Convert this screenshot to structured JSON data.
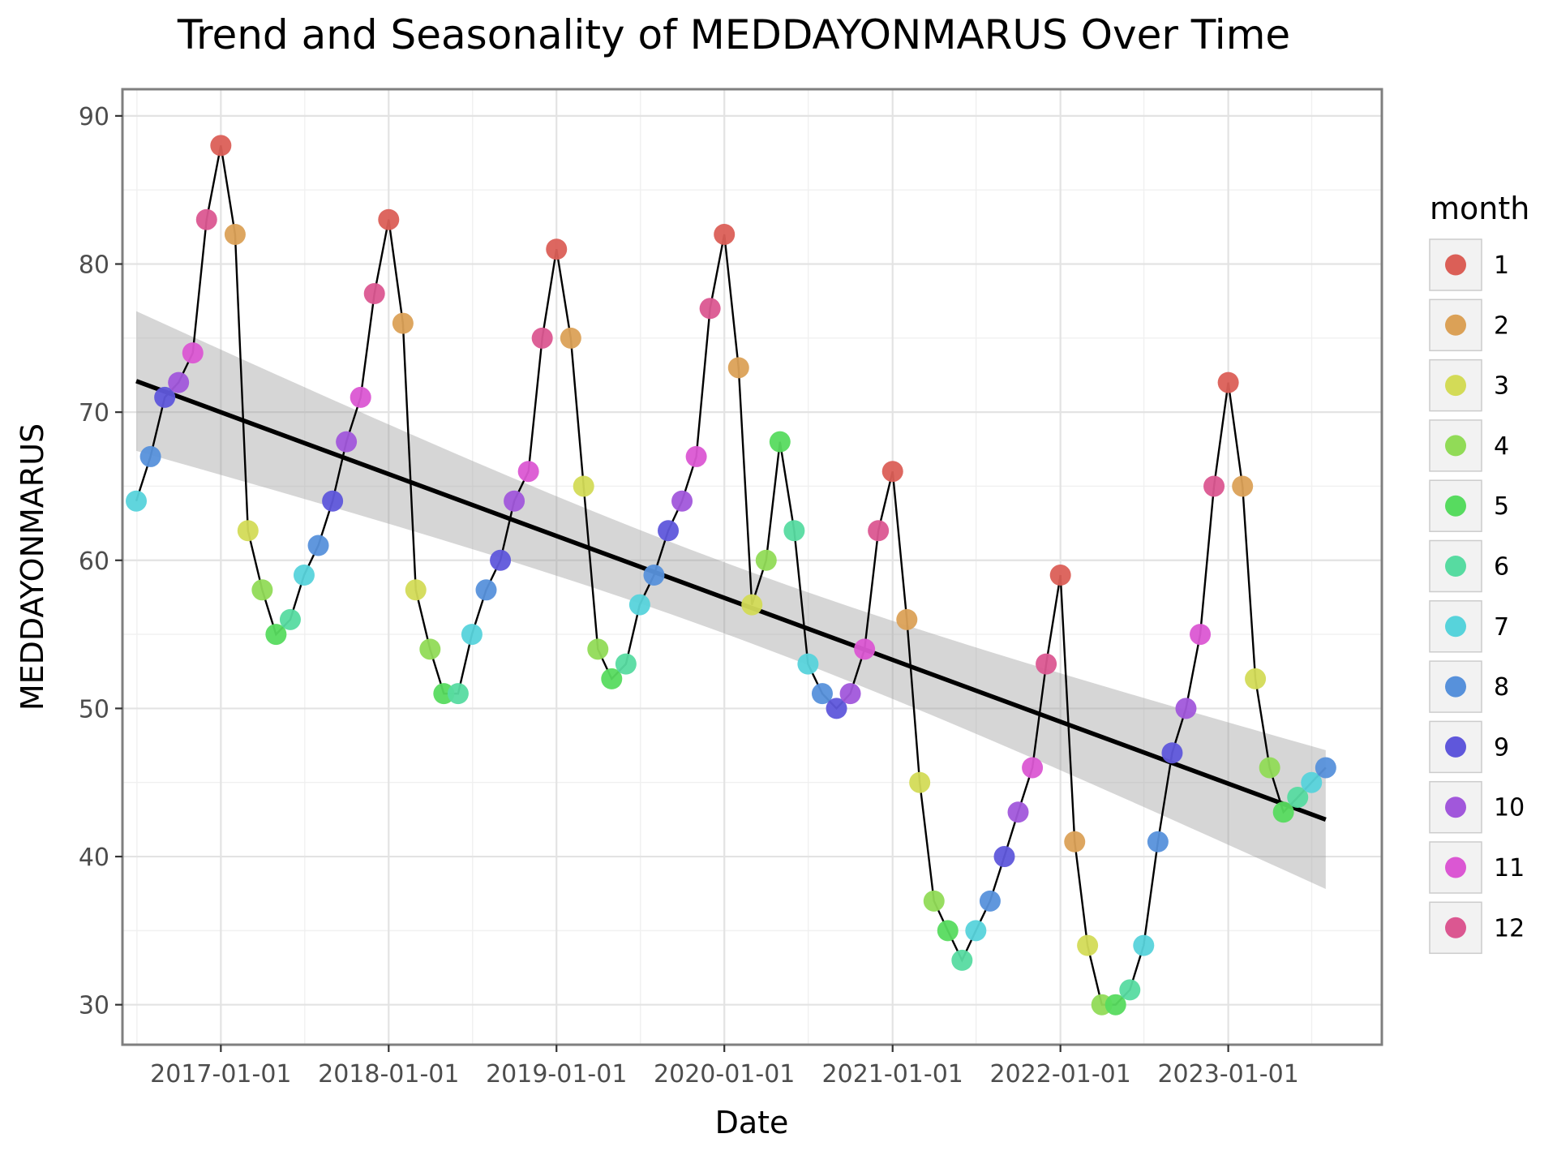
{
  "chart_data": {
    "type": "line",
    "title": "Trend and Seasonality of MEDDAYONMARUS Over Time",
    "xlabel": "Date",
    "ylabel": "MEDDAYONMARUS",
    "xlim": [
      "2016-06-01",
      "2023-12-01"
    ],
    "ylim": [
      27.3,
      91.8
    ],
    "x_ticks": [
      "2017-01-01",
      "2018-01-01",
      "2019-01-01",
      "2020-01-01",
      "2021-01-01",
      "2022-01-01",
      "2023-01-01"
    ],
    "y_ticks": [
      30,
      40,
      50,
      60,
      70,
      80,
      90
    ],
    "grid": true,
    "legend": {
      "title": "month",
      "position": "right",
      "entries": [
        {
          "label": "1",
          "color": "#db5f57"
        },
        {
          "label": "2",
          "color": "#dba157"
        },
        {
          "label": "3",
          "color": "#d3db57"
        },
        {
          "label": "4",
          "color": "#91db57"
        },
        {
          "label": "5",
          "color": "#57db5f"
        },
        {
          "label": "6",
          "color": "#57dba1"
        },
        {
          "label": "7",
          "color": "#57d3db"
        },
        {
          "label": "8",
          "color": "#5791db"
        },
        {
          "label": "9",
          "color": "#5f57db"
        },
        {
          "label": "10",
          "color": "#a157db"
        },
        {
          "label": "11",
          "color": "#db57d3"
        },
        {
          "label": "12",
          "color": "#db5791"
        }
      ]
    },
    "series": [
      {
        "type": "line+points",
        "color_by": "month",
        "points": [
          {
            "x": "2016-07-01",
            "y": 64
          },
          {
            "x": "2016-08-01",
            "y": 67
          },
          {
            "x": "2016-09-01",
            "y": 71
          },
          {
            "x": "2016-10-01",
            "y": 72
          },
          {
            "x": "2016-11-01",
            "y": 74
          },
          {
            "x": "2016-12-01",
            "y": 83
          },
          {
            "x": "2017-01-01",
            "y": 88
          },
          {
            "x": "2017-02-01",
            "y": 82
          },
          {
            "x": "2017-03-01",
            "y": 62
          },
          {
            "x": "2017-04-01",
            "y": 58
          },
          {
            "x": "2017-05-01",
            "y": 55
          },
          {
            "x": "2017-06-01",
            "y": 56
          },
          {
            "x": "2017-07-01",
            "y": 59
          },
          {
            "x": "2017-08-01",
            "y": 61
          },
          {
            "x": "2017-09-01",
            "y": 64
          },
          {
            "x": "2017-10-01",
            "y": 68
          },
          {
            "x": "2017-11-01",
            "y": 71
          },
          {
            "x": "2017-12-01",
            "y": 78
          },
          {
            "x": "2018-01-01",
            "y": 83
          },
          {
            "x": "2018-02-01",
            "y": 76
          },
          {
            "x": "2018-03-01",
            "y": 58
          },
          {
            "x": "2018-04-01",
            "y": 54
          },
          {
            "x": "2018-05-01",
            "y": 51
          },
          {
            "x": "2018-06-01",
            "y": 51
          },
          {
            "x": "2018-07-01",
            "y": 55
          },
          {
            "x": "2018-08-01",
            "y": 58
          },
          {
            "x": "2018-09-01",
            "y": 60
          },
          {
            "x": "2018-10-01",
            "y": 64
          },
          {
            "x": "2018-11-01",
            "y": 66
          },
          {
            "x": "2018-12-01",
            "y": 75
          },
          {
            "x": "2019-01-01",
            "y": 81
          },
          {
            "x": "2019-02-01",
            "y": 75
          },
          {
            "x": "2019-03-01",
            "y": 65
          },
          {
            "x": "2019-04-01",
            "y": 54
          },
          {
            "x": "2019-05-01",
            "y": 52
          },
          {
            "x": "2019-06-01",
            "y": 53
          },
          {
            "x": "2019-07-01",
            "y": 57
          },
          {
            "x": "2019-08-01",
            "y": 59
          },
          {
            "x": "2019-09-01",
            "y": 62
          },
          {
            "x": "2019-10-01",
            "y": 64
          },
          {
            "x": "2019-11-01",
            "y": 67
          },
          {
            "x": "2019-12-01",
            "y": 77
          },
          {
            "x": "2020-01-01",
            "y": 82
          },
          {
            "x": "2020-02-01",
            "y": 73
          },
          {
            "x": "2020-03-01",
            "y": 57
          },
          {
            "x": "2020-04-01",
            "y": 60
          },
          {
            "x": "2020-05-01",
            "y": 68
          },
          {
            "x": "2020-06-01",
            "y": 62
          },
          {
            "x": "2020-07-01",
            "y": 53
          },
          {
            "x": "2020-08-01",
            "y": 51
          },
          {
            "x": "2020-09-01",
            "y": 50
          },
          {
            "x": "2020-10-01",
            "y": 51
          },
          {
            "x": "2020-11-01",
            "y": 54
          },
          {
            "x": "2020-12-01",
            "y": 62
          },
          {
            "x": "2021-01-01",
            "y": 66
          },
          {
            "x": "2021-02-01",
            "y": 56
          },
          {
            "x": "2021-03-01",
            "y": 45
          },
          {
            "x": "2021-04-01",
            "y": 37
          },
          {
            "x": "2021-05-01",
            "y": 35
          },
          {
            "x": "2021-06-01",
            "y": 33
          },
          {
            "x": "2021-07-01",
            "y": 35
          },
          {
            "x": "2021-08-01",
            "y": 37
          },
          {
            "x": "2021-09-01",
            "y": 40
          },
          {
            "x": "2021-10-01",
            "y": 43
          },
          {
            "x": "2021-11-01",
            "y": 46
          },
          {
            "x": "2021-12-01",
            "y": 53
          },
          {
            "x": "2022-01-01",
            "y": 59
          },
          {
            "x": "2022-02-01",
            "y": 41
          },
          {
            "x": "2022-03-01",
            "y": 34
          },
          {
            "x": "2022-04-01",
            "y": 30
          },
          {
            "x": "2022-05-01",
            "y": 30
          },
          {
            "x": "2022-06-01",
            "y": 31
          },
          {
            "x": "2022-07-01",
            "y": 34
          },
          {
            "x": "2022-08-01",
            "y": 41
          },
          {
            "x": "2022-09-01",
            "y": 47
          },
          {
            "x": "2022-10-01",
            "y": 50
          },
          {
            "x": "2022-11-01",
            "y": 55
          },
          {
            "x": "2022-12-01",
            "y": 65
          },
          {
            "x": "2023-01-01",
            "y": 72
          },
          {
            "x": "2023-02-01",
            "y": 65
          },
          {
            "x": "2023-03-01",
            "y": 52
          },
          {
            "x": "2023-04-01",
            "y": 46
          },
          {
            "x": "2023-05-01",
            "y": 43
          },
          {
            "x": "2023-06-01",
            "y": 44
          },
          {
            "x": "2023-07-01",
            "y": 45
          },
          {
            "x": "2023-08-01",
            "y": 46
          }
        ]
      },
      {
        "type": "trend",
        "method": "linear",
        "color": "#000000",
        "line": [
          {
            "x": "2016-07-01",
            "y": 72.1
          },
          {
            "x": "2023-08-01",
            "y": 42.5
          }
        ],
        "confidence_band": {
          "color": "#999999",
          "upper": [
            {
              "x": "2016-07-01",
              "y": 76.8
            },
            {
              "x": "2023-08-01",
              "y": 47.1
            }
          ],
          "lower": [
            {
              "x": "2016-07-01",
              "y": 67.3
            },
            {
              "x": "2023-08-01",
              "y": 37.8
            }
          ],
          "mid_width": 2.4
        }
      }
    ]
  }
}
